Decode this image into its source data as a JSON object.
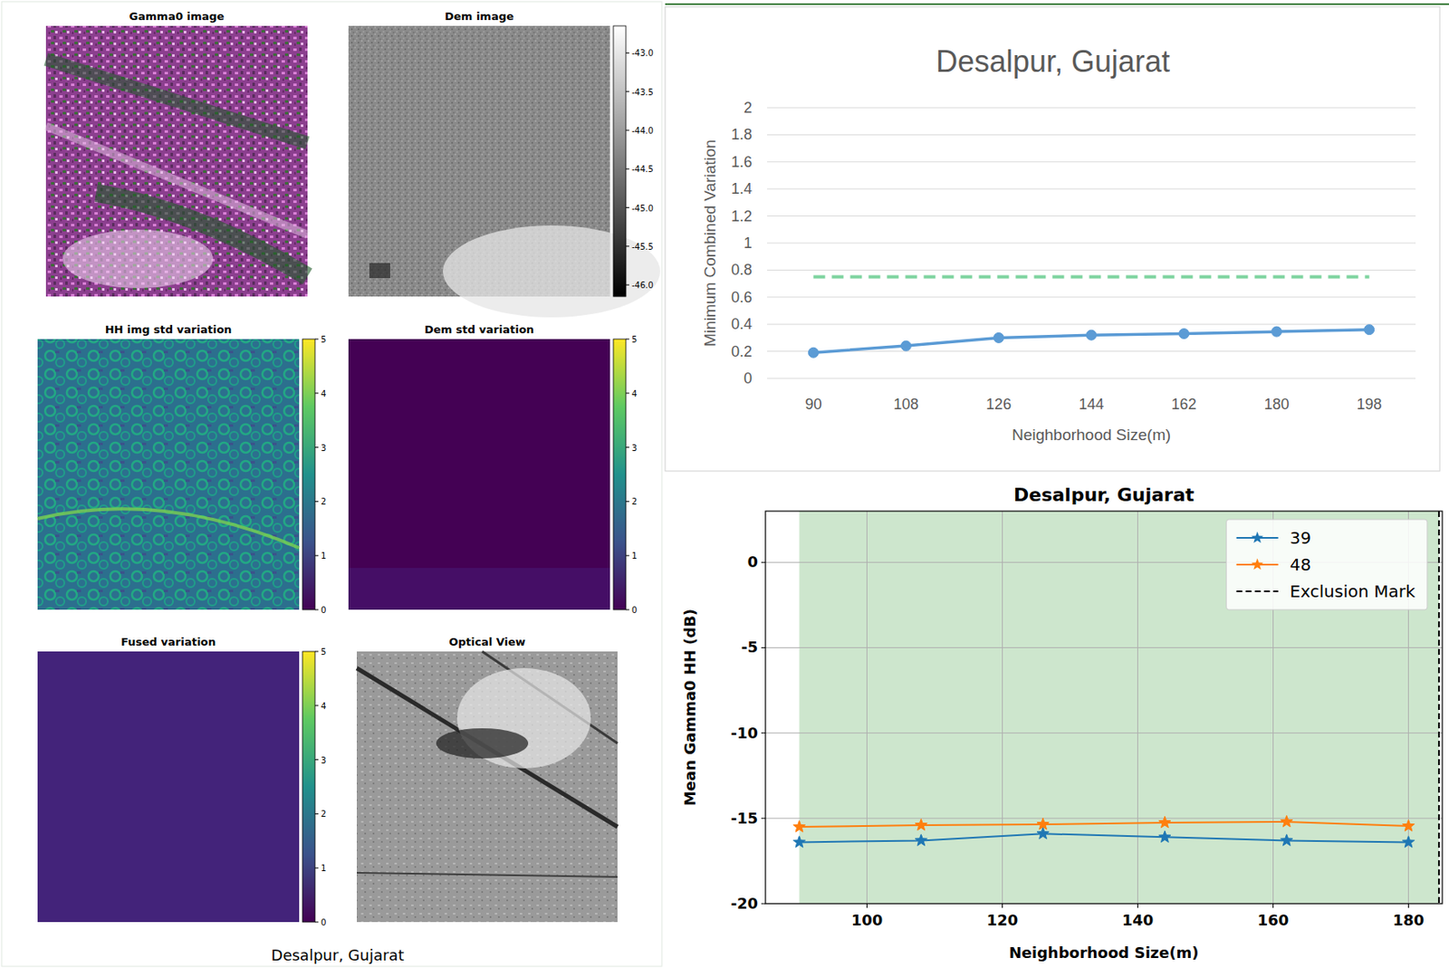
{
  "figure": {
    "caption": "Desalpur, Gujarat",
    "images": [
      {
        "title": "Gamma0 image"
      },
      {
        "title": "Dem image",
        "colorbar": {
          "range": [
            -46.15,
            -42.65
          ],
          "ticks": [
            {
              "value": -43,
              "label": "-43.0"
            },
            -43.5,
            {
              "value": -44,
              "label": "-44.0"
            },
            -44.5,
            {
              "value": -45,
              "label": "-45.0"
            },
            -45.5,
            {
              "value": -46,
              "label": "-46.0"
            }
          ]
        }
      },
      {
        "title": "HH img std variation",
        "colorbar": {
          "range": [
            0,
            5
          ],
          "ticks": [
            0,
            1,
            2,
            3,
            4,
            5
          ]
        }
      },
      {
        "title": "Dem std variation",
        "colorbar": {
          "range": [
            0,
            5
          ],
          "ticks": [
            0,
            1,
            2,
            3,
            4,
            5
          ]
        }
      },
      {
        "title": "Fused variation",
        "colorbar": {
          "range": [
            0,
            5
          ],
          "ticks": [
            0,
            1,
            2,
            3,
            4,
            5
          ]
        }
      },
      {
        "title": "Optical View"
      }
    ]
  },
  "chart_data": [
    {
      "type": "line",
      "title": "Desalpur, Gujarat",
      "x_label": "Neighborhood Size(m)",
      "y_label": "Minimum Combined Variation",
      "categories": [
        "90",
        "108",
        "126",
        "144",
        "162",
        "180",
        "198"
      ],
      "series": [
        {
          "color": "#5b9bd5",
          "marker": "circle",
          "line_style": "solid",
          "values": [
            0.19,
            0.24,
            0.3,
            0.32,
            0.33,
            0.345,
            0.36
          ]
        },
        {
          "color": "#7fd4a0",
          "line_style": "dashed",
          "values": [
            0.75,
            0.75,
            0.75,
            0.75,
            0.75,
            0.75,
            0.75
          ]
        }
      ],
      "ylim": [
        0,
        2
      ],
      "yticks": [
        0,
        0.2,
        0.4,
        0.6,
        0.8,
        1,
        1.2,
        1.4,
        1.6,
        1.8,
        2
      ],
      "grid": true
    },
    {
      "type": "line",
      "title": "Desalpur, Gujarat",
      "x_label": "Neighborhood Size(m)",
      "y_label": "Mean Gamma0 HH (dB)",
      "x": [
        90,
        108,
        126,
        144,
        162,
        180
      ],
      "series": [
        {
          "name": "39",
          "color": "#1f77b4",
          "marker": "star",
          "line_style": "solid",
          "values": [
            -16.4,
            -16.3,
            -15.9,
            -16.1,
            -16.3,
            -16.4
          ]
        },
        {
          "name": "48",
          "color": "#ff7f0e",
          "marker": "star",
          "line_style": "solid",
          "values": [
            -15.5,
            -15.4,
            -15.35,
            -15.25,
            -15.2,
            -15.45
          ]
        }
      ],
      "annotations": [
        {
          "type": "vline",
          "text": "Exclusion Mark",
          "x": 184.5,
          "color": "#000000",
          "line_style": "dashed"
        }
      ],
      "shaded": {
        "x": [
          90,
          184.5
        ],
        "color": "#cde6cd"
      },
      "xlim": [
        85,
        185
      ],
      "xticks": [
        100,
        120,
        140,
        160,
        180
      ],
      "ylim": [
        -20,
        3
      ],
      "yticks": [
        -20,
        -15,
        -10,
        -5,
        0
      ],
      "grid": true,
      "legend": "upper right"
    }
  ]
}
